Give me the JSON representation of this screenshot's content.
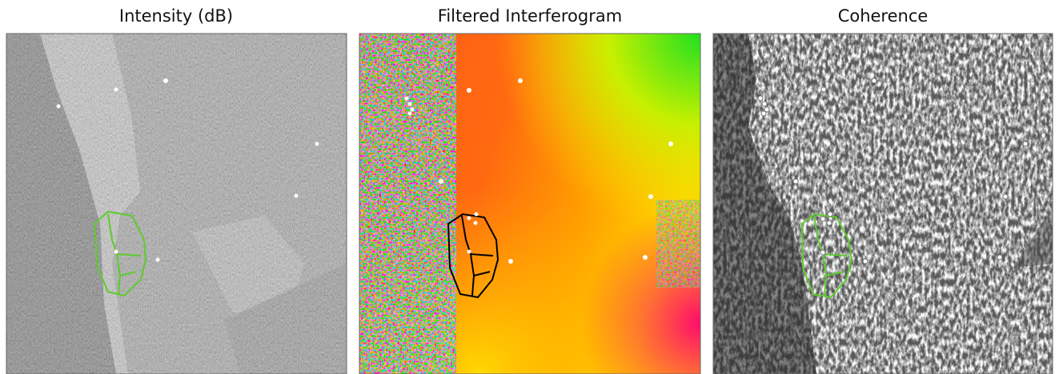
{
  "panels": [
    {
      "title": "Intensity (dB)"
    },
    {
      "title": "Filtered Interferogram"
    },
    {
      "title": "Coherence"
    }
  ]
}
